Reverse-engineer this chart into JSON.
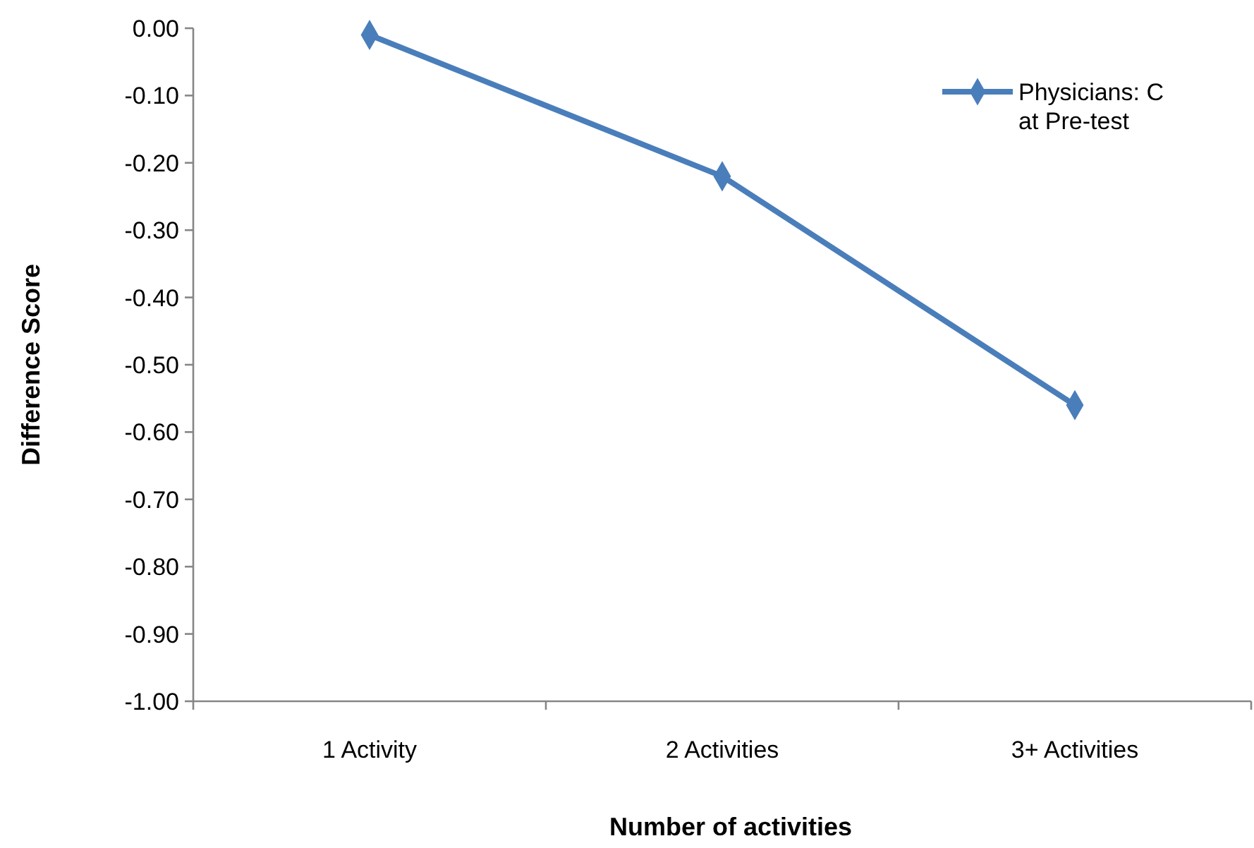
{
  "chart_data": {
    "type": "line",
    "xlabel": "Number of activities",
    "ylabel": "Difference Score",
    "categories": [
      "1 Activity",
      "2 Activities",
      "3+ Activities"
    ],
    "series": [
      {
        "name": "Physicians: C at Pre-test",
        "color": "#4a7ebb",
        "values": [
          -0.01,
          -0.22,
          -0.56
        ]
      }
    ],
    "ylim": [
      -1,
      0
    ],
    "yticks": [
      {
        "value": 0,
        "label": "0.00"
      },
      {
        "value": -0.1,
        "label": "-0.10"
      },
      {
        "value": -0.2,
        "label": "-0.20"
      },
      {
        "value": -0.3,
        "label": "-0.30"
      },
      {
        "value": -0.4,
        "label": "-0.40"
      },
      {
        "value": -0.5,
        "label": "-0.50"
      },
      {
        "value": -0.6,
        "label": "-0.60"
      },
      {
        "value": -0.7,
        "label": "-0.70"
      },
      {
        "value": -0.8,
        "label": "-0.80"
      },
      {
        "value": -0.9,
        "label": "-0.90"
      },
      {
        "value": -1,
        "label": "-1.00"
      }
    ],
    "grid": false,
    "legend": "top right",
    "marker": "diamond",
    "line_style": "solid"
  }
}
